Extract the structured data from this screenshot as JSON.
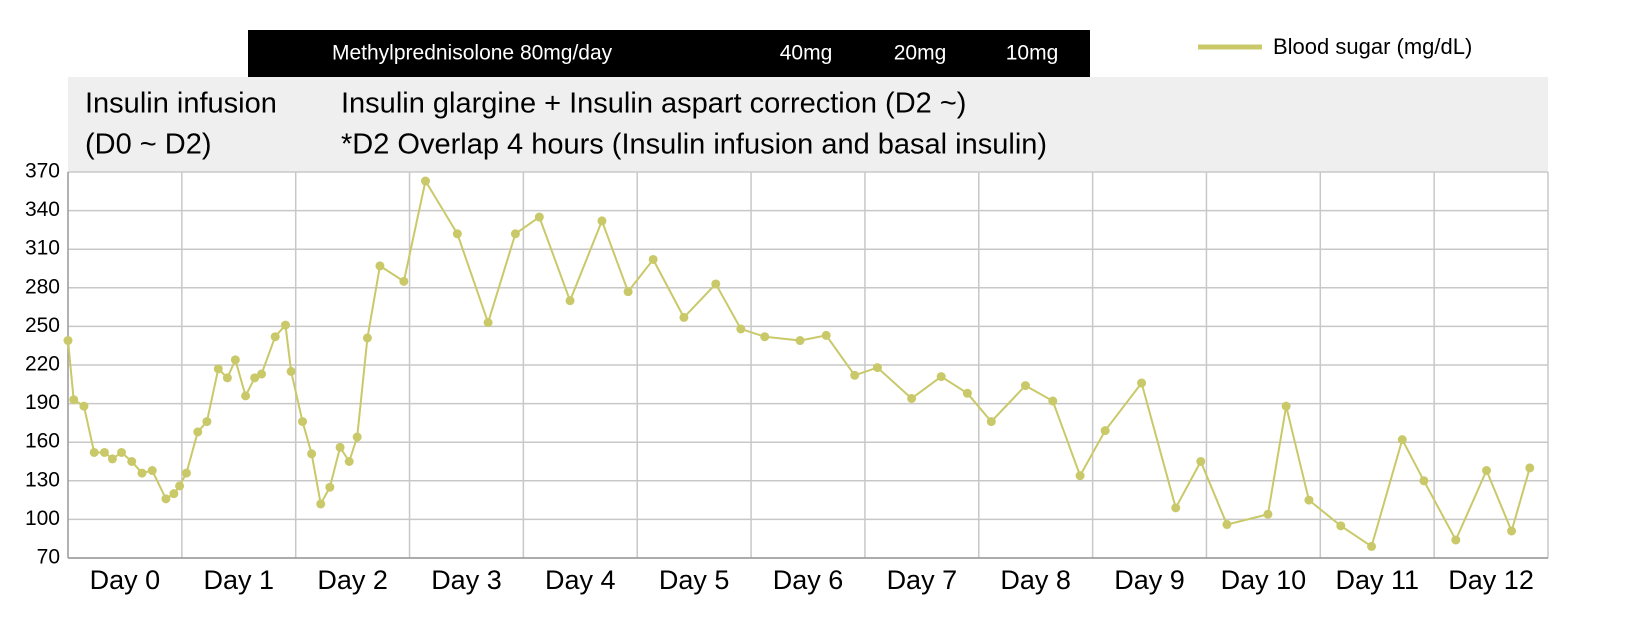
{
  "chart_data": {
    "type": "line",
    "header_bar": [
      "Methylprednisolone 80mg/day",
      "40mg",
      "20mg",
      "10mg"
    ],
    "insulin_notes": [
      "Insulin infusion",
      "(D0 ~ D2)",
      "Insulin glargine + Insulin aspart correction (D2 ~)",
      "*D2 Overlap 4 hours (Insulin infusion and basal insulin)"
    ],
    "legend": "upper right",
    "grid": true,
    "xlim": [
      0,
      13
    ],
    "xticks": [
      {
        "value": 0.5,
        "label": "Day 0"
      },
      {
        "value": 1.5,
        "label": "Day 1"
      },
      {
        "value": 2.5,
        "label": "Day 2"
      },
      {
        "value": 3.5,
        "label": "Day 3"
      },
      {
        "value": 4.5,
        "label": "Day 4"
      },
      {
        "value": 5.5,
        "label": "Day 5"
      },
      {
        "value": 6.5,
        "label": "Day 6"
      },
      {
        "value": 7.5,
        "label": "Day 7"
      },
      {
        "value": 8.5,
        "label": "Day 8"
      },
      {
        "value": 9.5,
        "label": "Day 9"
      },
      {
        "value": 10.5,
        "label": "Day 10"
      },
      {
        "value": 11.5,
        "label": "Day 11"
      },
      {
        "value": 12.5,
        "label": "Day 12"
      }
    ],
    "ylim": [
      70,
      370
    ],
    "yticks": [
      70,
      100,
      130,
      160,
      190,
      220,
      250,
      280,
      310,
      340,
      370
    ],
    "x": [
      0,
      0.05,
      0.14,
      0.23,
      0.32,
      0.39,
      0.47,
      0.56,
      0.65,
      0.74,
      0.86,
      0.93,
      0.98,
      1.04,
      1.14,
      1.22,
      1.32,
      1.4,
      1.47,
      1.56,
      1.64,
      1.7,
      1.82,
      1.91,
      1.96,
      2.06,
      2.14,
      2.22,
      2.3,
      2.39,
      2.47,
      2.54,
      2.63,
      2.74,
      2.95,
      3.14,
      3.42,
      3.69,
      3.93,
      4.14,
      4.41,
      4.69,
      4.92,
      5.14,
      5.41,
      5.69,
      5.91,
      6.12,
      6.43,
      6.66,
      6.91,
      7.11,
      7.41,
      7.67,
      7.9,
      8.11,
      8.41,
      8.65,
      8.89,
      9.11,
      9.43,
      9.73,
      9.95,
      10.18,
      10.54,
      10.7,
      10.9,
      11.18,
      11.45,
      11.72,
      11.91,
      12.19,
      12.46,
      12.68,
      12.84
    ],
    "series": [
      {
        "name": "Blood sugar (mg/dL)",
        "color": "#c9c96a",
        "values": [
          239,
          193,
          188,
          152,
          152,
          147,
          152,
          145,
          136,
          138,
          116,
          120,
          126,
          136,
          168,
          176,
          217,
          210,
          224,
          196,
          210,
          213,
          242,
          251,
          215,
          176,
          151,
          112,
          125,
          156,
          145,
          164,
          241,
          297,
          285,
          363,
          322,
          253,
          322,
          335,
          270,
          332,
          277,
          302,
          257,
          283,
          248,
          242,
          239,
          243,
          212,
          218,
          194,
          211,
          198,
          176,
          204,
          192,
          134,
          169,
          206,
          109,
          145,
          96,
          104,
          188,
          115,
          95,
          79,
          162,
          130,
          84,
          138,
          91,
          140
        ]
      }
    ]
  }
}
